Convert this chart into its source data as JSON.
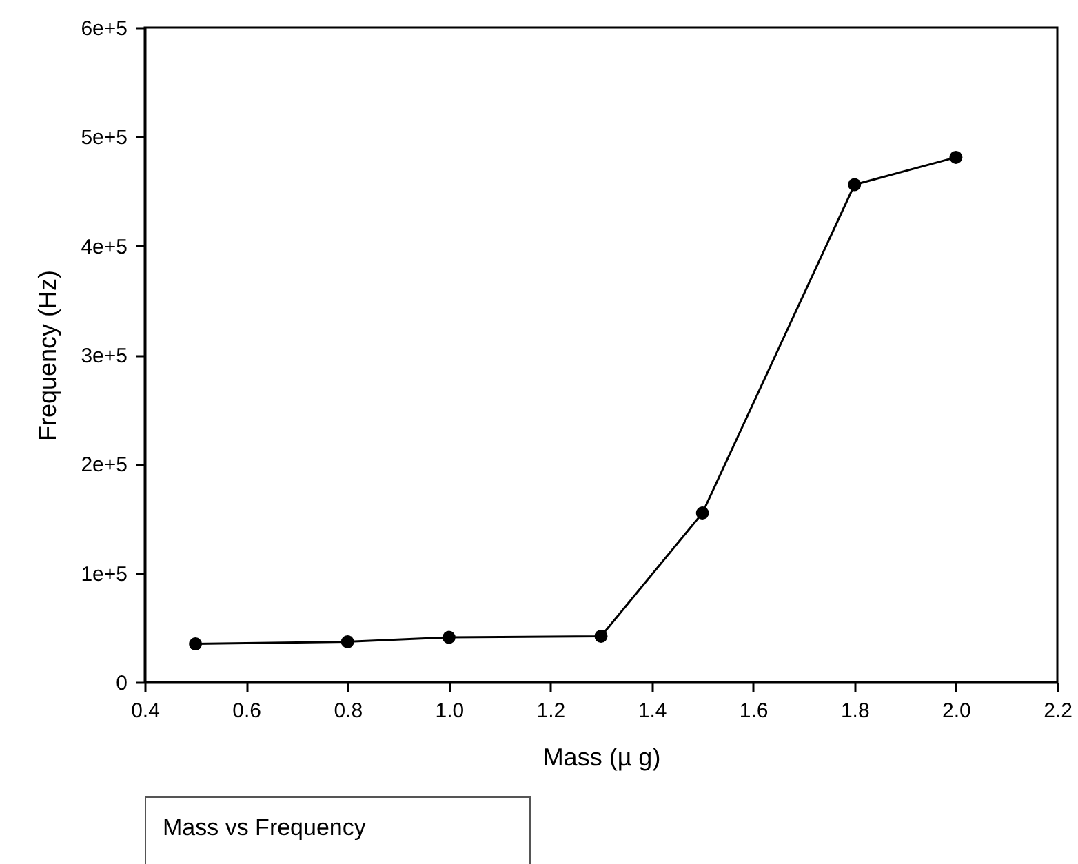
{
  "chart_data": {
    "type": "line",
    "xlabel": "Mass (µ  g)",
    "ylabel": "Frequency (Hz)",
    "x": [
      0.5,
      0.8,
      1.0,
      1.3,
      1.5,
      1.8,
      2.0
    ],
    "series": [
      {
        "color": "#000000",
        "values": [
          35000,
          37000,
          41000,
          42000,
          155000,
          456000,
          481000
        ]
      }
    ],
    "xlim": [
      0.4,
      2.2
    ],
    "xticks": [
      0.4,
      0.6,
      0.8,
      {
        "value": 1,
        "label": "1.0"
      },
      1.2,
      1.4,
      1.6,
      1.8,
      {
        "value": 2,
        "label": "2.0"
      },
      2.2
    ],
    "ylim": [
      0,
      600000
    ],
    "yticks": [
      0,
      {
        "value": 100000,
        "label": "1e+5"
      },
      {
        "value": 200000,
        "label": "2e+5"
      },
      {
        "value": 300000,
        "label": "3e+5"
      },
      {
        "value": 400000,
        "label": "4e+5"
      },
      {
        "value": 500000,
        "label": "5e+5"
      },
      {
        "value": 600000,
        "label": "6e+5"
      }
    ],
    "marker": "circle",
    "line_style": "solid",
    "grid": false,
    "annotations": [
      "Mass vs Frequency"
    ]
  }
}
